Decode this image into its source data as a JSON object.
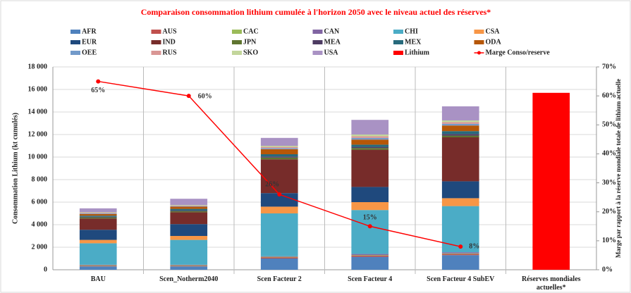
{
  "chart_data": {
    "type": "bar",
    "stacked": true,
    "title": "Comparaison consommation lithium cumulée à l'horizon 2050 avec le niveau  actuel des réserves*",
    "ylabel": "Consommation Lithium (kt cumulés)",
    "y2label": "Marge par rapport à la réserve mondiale totale de lithium actuelle",
    "categories": [
      "BAU",
      "Scen_Notherm2040",
      "Scen Facteur 2",
      "Scen Facteur 4",
      "Scen Facteur 4 SubEV",
      "Réserves mondiales actuelles*"
    ],
    "ylim": [
      0,
      18000
    ],
    "yticks": [
      0,
      {
        "value": 2000,
        "label": "2 000"
      },
      {
        "value": 4000,
        "label": "4 000"
      },
      {
        "value": 6000,
        "label": "6 000"
      },
      {
        "value": 8000,
        "label": "8 000"
      },
      {
        "value": 10000,
        "label": "10 000"
      },
      {
        "value": 12000,
        "label": "12 000"
      },
      {
        "value": 14000,
        "label": "14 000"
      },
      {
        "value": 16000,
        "label": "16 000"
      },
      {
        "value": 18000,
        "label": "18 000"
      }
    ],
    "y2lim": [
      0,
      70
    ],
    "y2ticks": [
      {
        "value": 0,
        "label": "0%"
      },
      {
        "value": 10,
        "label": "10%"
      },
      {
        "value": 20,
        "label": "20%"
      },
      {
        "value": 30,
        "label": "30%"
      },
      {
        "value": 40,
        "label": "40%"
      },
      {
        "value": 50,
        "label": "50%"
      },
      {
        "value": 60,
        "label": "60%"
      },
      {
        "value": 70,
        "label": "70%"
      }
    ],
    "grid": true,
    "series": [
      {
        "name": "AFR",
        "color": "#4f81bd",
        "values": [
          300,
          300,
          1000,
          1150,
          1300,
          null
        ]
      },
      {
        "name": "AUS",
        "color": "#c0504d",
        "values": [
          50,
          50,
          100,
          100,
          100,
          null
        ]
      },
      {
        "name": "CAC",
        "color": "#9bbb59",
        "values": [
          50,
          50,
          50,
          50,
          50,
          null
        ]
      },
      {
        "name": "CAN",
        "color": "#8064a2",
        "values": [
          50,
          50,
          50,
          100,
          100,
          null
        ]
      },
      {
        "name": "CHI",
        "color": "#4bacc6",
        "values": [
          1900,
          2200,
          3800,
          3900,
          4100,
          null
        ]
      },
      {
        "name": "CSA",
        "color": "#f79646",
        "values": [
          300,
          350,
          600,
          700,
          700,
          null
        ]
      },
      {
        "name": "EUR",
        "color": "#1f497d",
        "values": [
          900,
          1050,
          1200,
          1350,
          1500,
          null
        ]
      },
      {
        "name": "IND",
        "color": "#772c2a",
        "values": [
          1000,
          1050,
          3000,
          3300,
          3900,
          null
        ]
      },
      {
        "name": "JPN",
        "color": "#5f7530",
        "values": [
          100,
          100,
          150,
          150,
          150,
          null
        ]
      },
      {
        "name": "MEA",
        "color": "#4d3b62",
        "values": [
          50,
          50,
          100,
          100,
          150,
          null
        ]
      },
      {
        "name": "MEX",
        "color": "#276a7c",
        "values": [
          100,
          150,
          200,
          200,
          250,
          null
        ]
      },
      {
        "name": "ODA",
        "color": "#b65708",
        "values": [
          150,
          200,
          450,
          450,
          500,
          null
        ]
      },
      {
        "name": "OEE",
        "color": "#729aca",
        "values": [
          50,
          50,
          100,
          150,
          150,
          null
        ]
      },
      {
        "name": "RUS",
        "color": "#d99694",
        "values": [
          50,
          50,
          100,
          150,
          150,
          null
        ]
      },
      {
        "name": "SKO",
        "color": "#c3d69b",
        "values": [
          50,
          50,
          100,
          150,
          150,
          null
        ]
      },
      {
        "name": "USA",
        "color": "#a992c4",
        "values": [
          350,
          550,
          700,
          1300,
          1250,
          null
        ]
      },
      {
        "name": "Lithium",
        "color": "#ff0000",
        "values": [
          null,
          null,
          null,
          null,
          null,
          15700
        ]
      },
      {
        "name": "Marge Conso/reserve",
        "color": "#ff0000",
        "type": "line",
        "axis": "y2",
        "values": [
          65,
          60,
          26,
          15,
          8,
          null
        ],
        "value_labels": [
          "65%",
          "60%",
          "26%",
          "15%",
          "8%",
          null
        ]
      }
    ]
  }
}
